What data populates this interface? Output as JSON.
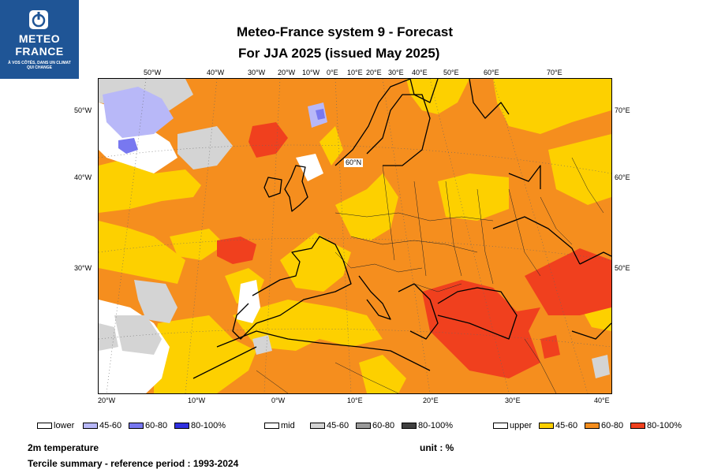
{
  "logo": {
    "line1": "METEO",
    "line2": "FRANCE",
    "tagline": "À VOS CÔTÉS, DANS UN CLIMAT QUI CHANGE",
    "bg_color": "#1f5596"
  },
  "title": {
    "line1": "Meteo-France system 9  -  Forecast",
    "line2": "For JJA 2025      (issued May 2025)"
  },
  "axes": {
    "top_ticks": [
      "50°W",
      "40°W",
      "30°W",
      "20°W",
      "10°W",
      "0°E",
      "10°E",
      "20°E",
      "30°E",
      "40°E",
      "50°E",
      "60°E",
      "70°E"
    ],
    "bottom_ticks": [
      "20°W",
      "10°W",
      "0°W",
      "10°E",
      "20°E",
      "30°E",
      "40°E"
    ],
    "left_ticks": [
      "50°W",
      "40°W",
      "30°W"
    ],
    "right_ticks": [
      "70°E",
      "60°E",
      "50°E"
    ],
    "lat_label": "60°N"
  },
  "legend": {
    "lower": {
      "label": "lower",
      "items": [
        {
          "label": "45-60",
          "color": "#b8b8f8"
        },
        {
          "label": "60-80",
          "color": "#7878f0"
        },
        {
          "label": "80-100%",
          "color": "#3030e0"
        }
      ]
    },
    "mid": {
      "label": "mid",
      "items": [
        {
          "label": "45-60",
          "color": "#d4d4d4"
        },
        {
          "label": "60-80",
          "color": "#9a9a9a"
        },
        {
          "label": "80-100%",
          "color": "#404040"
        }
      ]
    },
    "upper": {
      "label": "upper",
      "items": [
        {
          "label": "45-60",
          "color": "#fdd000"
        },
        {
          "label": "60-80",
          "color": "#f58e1e"
        },
        {
          "label": "80-100%",
          "color": "#f0401e"
        }
      ]
    }
  },
  "footer": {
    "variable": "2m temperature",
    "summary": "Tercile summary - reference period : 1993-2024",
    "unit": "unit : %"
  }
}
